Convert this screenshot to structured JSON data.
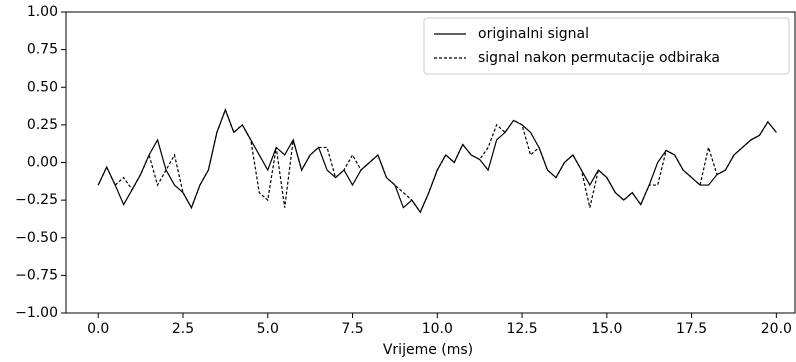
{
  "chart_data": {
    "type": "line",
    "xlabel": "Vrijeme (ms)",
    "x": [
      0,
      0.25,
      0.5,
      0.75,
      1,
      1.25,
      1.5,
      1.75,
      2,
      2.25,
      2.5,
      2.75,
      3,
      3.25,
      3.5,
      3.75,
      4,
      4.25,
      4.5,
      4.75,
      5,
      5.25,
      5.5,
      5.75,
      6,
      6.25,
      6.5,
      6.75,
      7,
      7.25,
      7.5,
      7.75,
      8,
      8.25,
      8.5,
      8.75,
      9,
      9.25,
      9.5,
      9.75,
      10,
      10.25,
      10.5,
      10.75,
      11,
      11.25,
      11.5,
      11.75,
      12,
      12.25,
      12.5,
      12.75,
      13,
      13.25,
      13.5,
      13.75,
      14,
      14.25,
      14.5,
      14.75,
      15,
      15.25,
      15.5,
      15.75,
      16,
      16.25,
      16.5,
      16.75,
      17,
      17.25,
      17.5,
      17.75,
      18,
      18.25,
      18.5,
      18.75,
      19,
      19.25,
      19.5,
      19.75,
      20
    ],
    "series": [
      {
        "name": "originalni signal",
        "color": "#000000",
        "dash": false,
        "values": [
          -0.15,
          -0.03,
          -0.15,
          -0.28,
          -0.18,
          -0.08,
          0.05,
          0.15,
          -0.05,
          -0.15,
          -0.2,
          -0.3,
          -0.15,
          -0.05,
          0.2,
          0.35,
          0.2,
          0.25,
          0.15,
          0.05,
          -0.05,
          0.1,
          0.05,
          0.15,
          -0.05,
          0.05,
          0.1,
          -0.05,
          -0.1,
          -0.05,
          -0.15,
          -0.05,
          0.0,
          0.05,
          -0.1,
          -0.15,
          -0.3,
          -0.25,
          -0.33,
          -0.2,
          -0.05,
          0.05,
          0.0,
          0.12,
          0.05,
          0.02,
          -0.05,
          0.15,
          0.2,
          0.28,
          0.25,
          0.2,
          0.1,
          -0.05,
          -0.1,
          0.0,
          0.05,
          -0.05,
          -0.15,
          -0.05,
          -0.1,
          -0.2,
          -0.25,
          -0.2,
          -0.28,
          -0.15,
          0.0,
          0.08,
          0.05,
          -0.05,
          -0.1,
          -0.15,
          -0.15,
          -0.08,
          -0.05,
          0.05,
          0.1,
          0.15,
          0.18,
          0.27,
          0.2
        ]
      },
      {
        "name": "signal nakon permutacije odbiraka",
        "color": "#000000",
        "dash": true,
        "values": [
          -0.15,
          -0.03,
          -0.15,
          -0.1,
          -0.18,
          -0.08,
          0.05,
          -0.15,
          -0.05,
          0.05,
          -0.2,
          -0.3,
          -0.15,
          -0.05,
          0.2,
          0.35,
          0.2,
          0.25,
          0.15,
          -0.2,
          -0.25,
          0.1,
          -0.3,
          0.15,
          -0.05,
          0.05,
          0.1,
          0.1,
          -0.1,
          -0.05,
          0.05,
          -0.05,
          0.0,
          0.05,
          -0.1,
          -0.15,
          -0.2,
          -0.25,
          -0.33,
          -0.2,
          -0.05,
          0.05,
          0.0,
          0.12,
          0.05,
          0.02,
          0.1,
          0.25,
          0.2,
          0.28,
          0.25,
          0.05,
          0.1,
          -0.05,
          -0.1,
          0.0,
          0.05,
          -0.05,
          -0.3,
          -0.05,
          -0.1,
          -0.2,
          -0.25,
          -0.2,
          -0.28,
          -0.15,
          -0.15,
          0.08,
          0.05,
          -0.05,
          -0.1,
          -0.15,
          0.1,
          -0.08,
          -0.05,
          0.05,
          0.1,
          0.15,
          0.18,
          0.27,
          0.2
        ]
      }
    ],
    "xlim": [
      -0.95,
      20.55
    ],
    "ylim": [
      -1,
      1
    ],
    "xticks": [
      {
        "value": 0,
        "label": "0.0"
      },
      {
        "value": 2.5,
        "label": "2.5"
      },
      {
        "value": 5,
        "label": "5.0"
      },
      {
        "value": 7.5,
        "label": "7.5"
      },
      {
        "value": 10,
        "label": "10.0"
      },
      {
        "value": 12.5,
        "label": "12.5"
      },
      {
        "value": 15,
        "label": "15.0"
      },
      {
        "value": 17.5,
        "label": "17.5"
      },
      {
        "value": 20,
        "label": "20.0"
      }
    ],
    "yticks": [
      {
        "value": -1,
        "label": "−1.00"
      },
      {
        "value": -0.75,
        "label": "−0.75"
      },
      {
        "value": -0.5,
        "label": "−0.50"
      },
      {
        "value": -0.25,
        "label": "−0.25"
      },
      {
        "value": 0,
        "label": "0.00"
      },
      {
        "value": 0.25,
        "label": "0.25"
      },
      {
        "value": 0.5,
        "label": "0.50"
      },
      {
        "value": 0.75,
        "label": "0.75"
      },
      {
        "value": 1,
        "label": "1.00"
      }
    ],
    "legend": "upper right"
  }
}
